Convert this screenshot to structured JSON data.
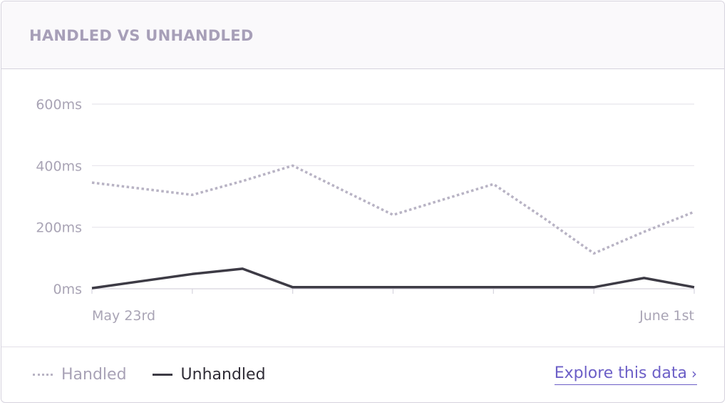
{
  "header": {
    "title": "HANDLED VS UNHANDLED"
  },
  "chart_data": {
    "type": "line",
    "ylim": [
      0,
      600
    ],
    "yticks": [
      0,
      200,
      400,
      600
    ],
    "ytick_labels": [
      "0ms",
      "200ms",
      "400ms",
      "600ms"
    ],
    "x_labels": [
      "May 23rd",
      "June 1st"
    ],
    "x": [
      0,
      1,
      2,
      3,
      4,
      5,
      6,
      7,
      8,
      9,
      10,
      11,
      12
    ],
    "series": [
      {
        "name": "Handled",
        "style": "dotted",
        "color": "#b8b3c4",
        "values": [
          345,
          325,
          305,
          350,
          400,
          320,
          240,
          290,
          340,
          230,
          115,
          185,
          250
        ]
      },
      {
        "name": "Unhandled",
        "style": "solid",
        "color": "#3d3b45",
        "values": [
          2,
          25,
          48,
          65,
          5,
          5,
          5,
          5,
          5,
          5,
          5,
          35,
          5
        ]
      }
    ],
    "grid": true
  },
  "legend": {
    "handled": "Handled",
    "unhandled": "Unhandled"
  },
  "footer": {
    "explore_label": "Explore this data",
    "explore_icon": "chevron-right-icon"
  }
}
